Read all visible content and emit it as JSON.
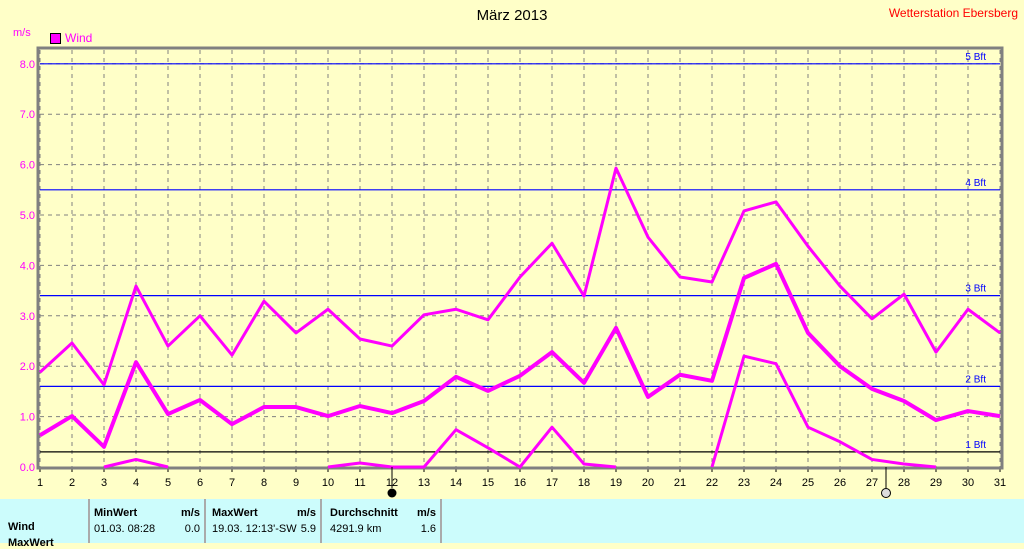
{
  "header": {
    "title": "März 2013",
    "station": "Wetterstation Ebersberg",
    "unit": "m/s"
  },
  "chart_data": {
    "type": "line",
    "title": "März 2013",
    "ylabel": "m/s",
    "ylim": [
      0,
      8.2
    ],
    "x": [
      1,
      2,
      3,
      4,
      5,
      6,
      7,
      8,
      9,
      10,
      11,
      12,
      13,
      14,
      15,
      16,
      17,
      18,
      19,
      20,
      21,
      22,
      23,
      24,
      25,
      26,
      27,
      28,
      29,
      30,
      31
    ],
    "yticks": [
      "0.0",
      "1.0",
      "2.0",
      "3.0",
      "4.0",
      "5.0",
      "6.0",
      "7.0",
      "8.0"
    ],
    "legend": [
      {
        "label": "Wind",
        "color": "#ff00ff"
      }
    ],
    "series": [
      {
        "name": "Max",
        "values": [
          1.88,
          2.46,
          1.63,
          3.59,
          2.4,
          3.0,
          2.22,
          3.29,
          2.66,
          3.13,
          2.54,
          2.4,
          3.02,
          3.13,
          2.92,
          3.77,
          4.44,
          3.39,
          5.93,
          4.56,
          3.77,
          3.67,
          5.08,
          5.26,
          4.38,
          3.59,
          2.94,
          3.43,
          2.28,
          3.13,
          2.66
        ]
      },
      {
        "name": "Durchschnitt",
        "values": [
          0.63,
          1.01,
          0.4,
          2.08,
          1.05,
          1.33,
          0.85,
          1.19,
          1.19,
          1.01,
          1.21,
          1.07,
          1.31,
          1.79,
          1.51,
          1.81,
          2.28,
          1.67,
          2.76,
          1.39,
          1.83,
          1.71,
          3.75,
          4.03,
          2.66,
          2.0,
          1.55,
          1.31,
          0.93,
          1.11,
          1.01
        ]
      },
      {
        "name": "Min",
        "values": [
          null,
          null,
          0,
          0.15,
          0,
          null,
          null,
          null,
          null,
          0,
          0.08,
          0,
          0,
          0.74,
          0.38,
          0,
          0.79,
          0.06,
          0,
          null,
          null,
          0,
          2.2,
          2.05,
          0.79,
          0.5,
          0.15,
          0.06,
          0,
          null,
          null
        ]
      }
    ],
    "reference_lines": [
      {
        "label": "5 Bft",
        "value": 8.0,
        "color": "#0000ff"
      },
      {
        "label": "4 Bft",
        "value": 5.5,
        "color": "#0000ff"
      },
      {
        "label": "3 Bft",
        "value": 3.4,
        "color": "#0000ff"
      },
      {
        "label": "2 Bft",
        "value": 1.6,
        "color": "#0000ff"
      },
      {
        "label": "1 Bft",
        "value": 0.3,
        "color": "#000000"
      }
    ]
  },
  "table": {
    "row_label": "Wind",
    "row2_label": "MaxWert",
    "min": {
      "header": "MinWert",
      "unit": "m/s",
      "date": "01.03.  08:28",
      "value": "0.0"
    },
    "max": {
      "header": "MaxWert",
      "unit": "m/s",
      "date": "19.03.  12:13'-SW",
      "value": "5.9"
    },
    "avg": {
      "header": "Durchschnitt",
      "unit": "m/s",
      "date": "4291.9 km",
      "value": "1.6"
    }
  }
}
